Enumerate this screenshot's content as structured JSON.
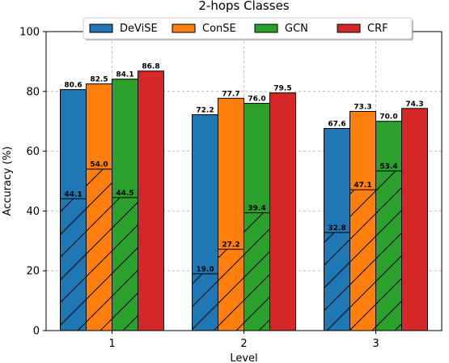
{
  "chart_data": {
    "type": "bar",
    "title": "2-hops Classes",
    "xlabel": "Level",
    "ylabel": "Accuracy (%)",
    "ylim": [
      0,
      100
    ],
    "yticks": [
      0,
      20,
      40,
      60,
      80,
      100
    ],
    "grid": true,
    "legend_position": "top-center",
    "categories": [
      "1",
      "2",
      "3"
    ],
    "series": [
      {
        "name": "DeViSE",
        "color": "#1f77b4",
        "values": [
          80.6,
          72.2,
          67.6
        ],
        "hatched_values": [
          44.1,
          19.0,
          32.8
        ]
      },
      {
        "name": "ConSE",
        "color": "#ff7f0e",
        "values": [
          82.5,
          77.7,
          73.3
        ],
        "hatched_values": [
          54.0,
          27.2,
          47.1
        ]
      },
      {
        "name": "GCN",
        "color": "#2ca02c",
        "values": [
          84.1,
          76.0,
          70.0
        ],
        "hatched_values": [
          44.5,
          39.4,
          53.4
        ]
      },
      {
        "name": "CRF",
        "color": "#d62728",
        "values": [
          86.8,
          79.5,
          74.3
        ],
        "hatched_values": []
      }
    ]
  }
}
